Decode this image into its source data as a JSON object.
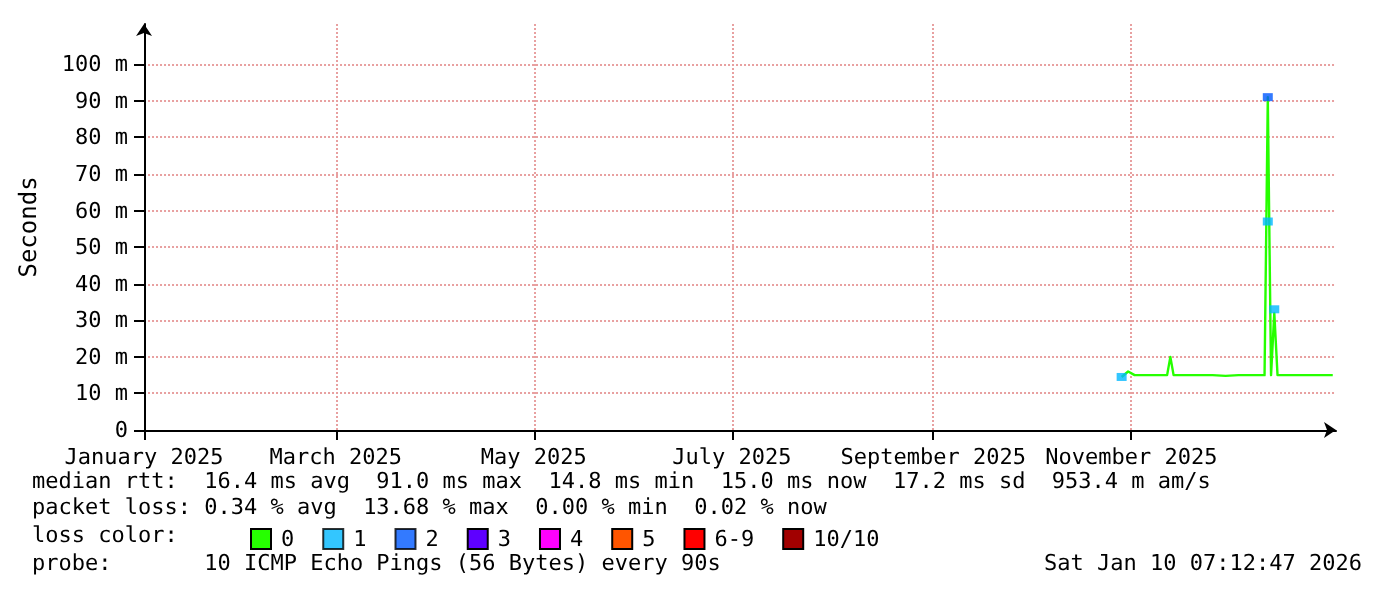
{
  "chart_data": {
    "type": "line",
    "ylabel": "Seconds",
    "legend_title": "loss color:",
    "legend": "bottom left",
    "grid": true,
    "line_style": "solid",
    "xlim": [
      "2025-01-01",
      "2026-01-03"
    ],
    "xticks": [
      {
        "value": "2025-01-01",
        "label": "January 2025"
      },
      {
        "value": "2025-03-01",
        "label": "March 2025"
      },
      {
        "value": "2025-05-01",
        "label": "May 2025"
      },
      {
        "value": "2025-07-01",
        "label": "July 2025"
      },
      {
        "value": "2025-09-01",
        "label": "September 2025"
      },
      {
        "value": "2025-11-01",
        "label": "November 2025"
      }
    ],
    "ylim": [
      0,
      111
    ],
    "yticks": [
      0,
      {
        "value": 10,
        "label": "10 m"
      },
      {
        "value": 20,
        "label": "20 m"
      },
      {
        "value": 30,
        "label": "30 m"
      },
      {
        "value": 40,
        "label": "40 m"
      },
      {
        "value": 50,
        "label": "50 m"
      },
      {
        "value": 60,
        "label": "60 m"
      },
      {
        "value": 70,
        "label": "70 m"
      },
      {
        "value": 80,
        "label": "80 m"
      },
      {
        "value": 90,
        "label": "90 m"
      },
      {
        "value": 100,
        "label": "100 m"
      }
    ],
    "series": [
      {
        "name": "0",
        "color": "#26ff00",
        "x": [
          "2025-10-29",
          "2025-10-31",
          "2025-11-02",
          "2025-11-05",
          "2025-11-08",
          "2025-11-12",
          "2025-11-13",
          "2025-11-14",
          "2025-11-18",
          "2025-11-22",
          "2025-11-26",
          "2025-11-30",
          "2025-12-04",
          "2025-12-08",
          "2025-12-12",
          "2025-12-13",
          "2025-12-14",
          "2025-12-15",
          "2025-12-16",
          "2025-12-20",
          "2025-12-24",
          "2025-12-28",
          "2026-01-02"
        ],
        "values": [
          14.5,
          16,
          15,
          15,
          15,
          15,
          20,
          15,
          15,
          15,
          15,
          14.8,
          15,
          15,
          15,
          91,
          15,
          32,
          15,
          15,
          15,
          15,
          15
        ]
      },
      {
        "name": "1",
        "color": "#00b8ff",
        "type": "scatter",
        "x": [
          "2025-10-29",
          "2025-12-13",
          "2025-12-15"
        ],
        "values": [
          14.5,
          57,
          33
        ]
      },
      {
        "name": "2",
        "color": "#0059ff",
        "type": "scatter",
        "x": [
          "2025-12-13"
        ],
        "values": [
          91
        ]
      },
      {
        "name": "3",
        "color": "#5e00ff"
      },
      {
        "name": "4",
        "color": "#ff00fe"
      },
      {
        "name": "5",
        "color": "#ff5500"
      },
      {
        "name": "6-9",
        "color": "#ff0000"
      },
      {
        "name": "10/10",
        "color": "#a10000"
      }
    ],
    "annotations": [
      "median rtt:  16.4 ms avg  91.0 ms max  14.8 ms min  15.0 ms now  17.2 ms sd  953.4 m am/s",
      "packet loss: 0.34 % avg  13.68 % max  0.00 % min  0.02 % now",
      "probe:       10 ICMP Echo Pings (56 Bytes) every 90s",
      "Sat Jan 10 07:12:47 2026"
    ]
  }
}
